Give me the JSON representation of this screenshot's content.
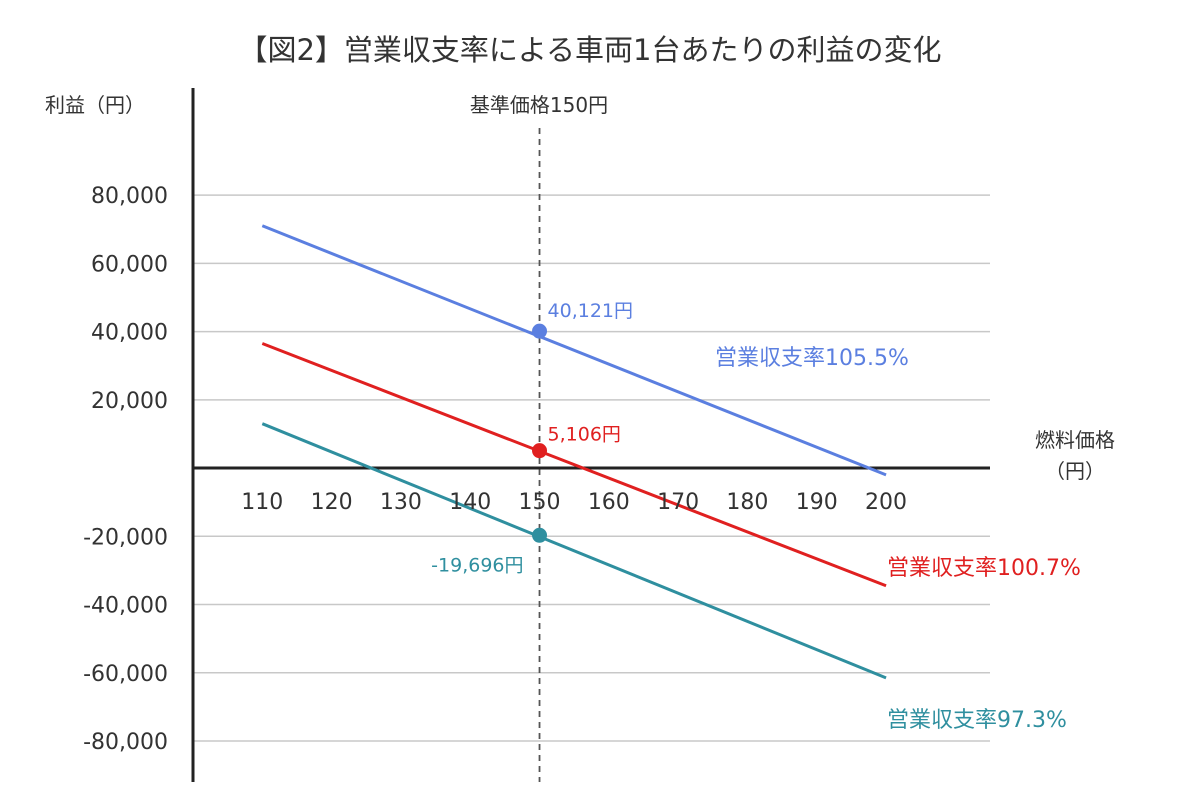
{
  "chart_data": {
    "type": "line",
    "title": "【図2】営業収支率による車両1台あたりの利益の変化",
    "ylabel": "利益（円）",
    "xlabel_line1": "燃料価格",
    "xlabel_line2": "（円）",
    "reference_label": "基準価格150円",
    "reference_x": 150,
    "x_ticks": [
      110,
      120,
      130,
      140,
      150,
      160,
      170,
      180,
      190,
      200
    ],
    "y_ticks": [
      {
        "value": 80000,
        "label": "80,000"
      },
      {
        "value": 60000,
        "label": "60,000"
      },
      {
        "value": 40000,
        "label": "40,000"
      },
      {
        "value": 20000,
        "label": "20,000"
      },
      {
        "value": -20000,
        "label": "-20,000"
      },
      {
        "value": -40000,
        "label": "-40,000"
      },
      {
        "value": -60000,
        "label": "-60,000"
      },
      {
        "value": -80000,
        "label": "-80,000"
      }
    ],
    "ylim": [
      -92000,
      102000
    ],
    "xlim": [
      100,
      215
    ],
    "grid": true,
    "series": [
      {
        "name": "営業収支率105.5%",
        "color": "#5b7fe0",
        "x": [
          110,
          200
        ],
        "y": [
          71000,
          -2000
        ],
        "marker": {
          "x": 150,
          "y": 40121,
          "label": "40,121円"
        }
      },
      {
        "name": "営業収支率100.7%",
        "color": "#e02020",
        "x": [
          110,
          200
        ],
        "y": [
          36500,
          -34500
        ],
        "marker": {
          "x": 150,
          "y": 5106,
          "label": "5,106円"
        }
      },
      {
        "name": "営業収支率97.3%",
        "color": "#2f8f9f",
        "x": [
          110,
          200
        ],
        "y": [
          13000,
          -61500
        ],
        "marker": {
          "x": 150,
          "y": -19696,
          "label": "-19,696円"
        }
      }
    ]
  }
}
